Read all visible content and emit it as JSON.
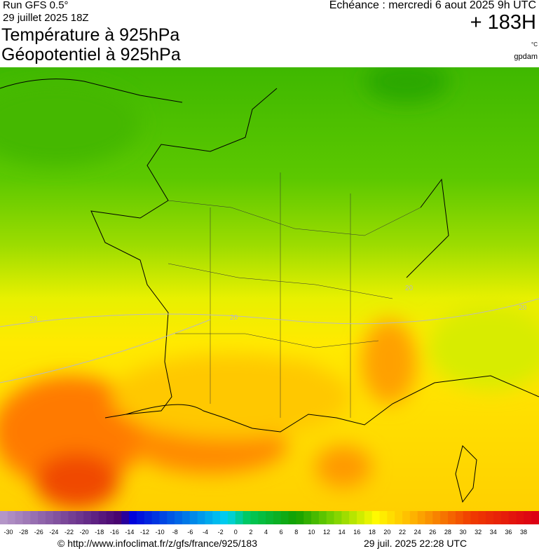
{
  "header": {
    "run": "Run GFS 0.5°",
    "run_date": "29 juillet 2025 18Z",
    "title_1": "Température à 925hPa",
    "title_2": "Géopotentiel à 925hPa",
    "valid": "Echéance : mercredi 6 aout 2025 9h UTC",
    "lead": "+ 183H",
    "unit_1": "°C",
    "unit_2": "gpdam"
  },
  "map": {
    "contour_labels": [
      "20",
      "20",
      "20",
      "20"
    ]
  },
  "colorbar": {
    "labels": [
      "-30",
      "-28",
      "-26",
      "-24",
      "-22",
      "-20",
      "-18",
      "-16",
      "-14",
      "-12",
      "-10",
      "-8",
      "-6",
      "-4",
      "-2",
      "0",
      "2",
      "4",
      "6",
      "8",
      "10",
      "12",
      "14",
      "16",
      "18",
      "20",
      "22",
      "24",
      "26",
      "28",
      "30",
      "32",
      "34",
      "36",
      "38"
    ]
  },
  "footer": {
    "url": "© http://www.infoclimat.fr/z/gfs/france/925/183",
    "generated": "29 juil. 2025 22:28 UTC"
  }
}
